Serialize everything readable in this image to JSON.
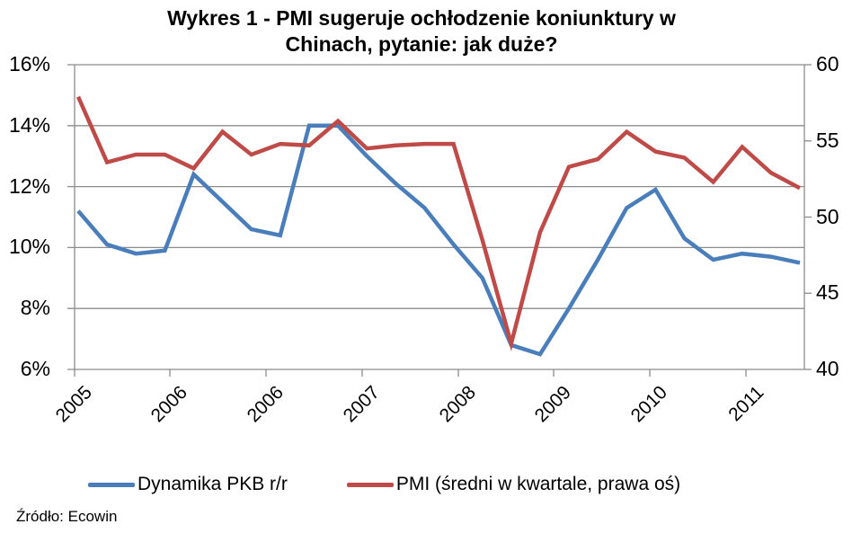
{
  "chart_data": {
    "type": "line",
    "title": "Wykres 1 - PMI sugeruje ochłodzenie koniunktury w Chinach, pytanie: jak duże?",
    "title_lines": [
      "Wykres 1 - PMI sugeruje ochłodzenie koniunktury w",
      "Chinach, pytanie: jak duże?"
    ],
    "xlabel": "",
    "ylabel": "",
    "y2label": "",
    "x_tick_labels": [
      "2005",
      "2006",
      "2006",
      "2007",
      "2008",
      "2009",
      "2010",
      "2011"
    ],
    "y_tick_labels": [
      "16%",
      "14%",
      "12%",
      "10%",
      "8%",
      "6%"
    ],
    "y2_tick_labels": [
      "60",
      "55",
      "50",
      "45",
      "40"
    ],
    "ylim": [
      6,
      16
    ],
    "y2lim": [
      40,
      60
    ],
    "grid": true,
    "legend_position": "bottom",
    "x": [
      "Q1-2005",
      "Q2-2005",
      "Q3-2005",
      "Q4-2005",
      "Q1-2006",
      "Q2-2006",
      "Q3-2006",
      "Q4-2006",
      "Q1-2007",
      "Q2-2007",
      "Q3-2007",
      "Q4-2007",
      "Q1-2008",
      "Q2-2008",
      "Q3-2008",
      "Q4-2008",
      "Q1-2009",
      "Q2-2009",
      "Q3-2009",
      "Q4-2009",
      "Q1-2010",
      "Q2-2010",
      "Q3-2010",
      "Q4-2010",
      "Q1-2011",
      "Q2-2011"
    ],
    "series": [
      {
        "name": "Dynamika PKB r/r",
        "axis": "left",
        "color": "#4a7ebb",
        "values": [
          11.2,
          10.1,
          9.8,
          9.9,
          12.4,
          11.5,
          10.6,
          10.4,
          14.0,
          14.0,
          13.0,
          12.1,
          11.3,
          10.1,
          9.0,
          6.8,
          6.5,
          8.0,
          9.6,
          11.3,
          11.9,
          10.3,
          9.6,
          9.8,
          9.7,
          9.5
        ]
      },
      {
        "name": "PMI (średni w kwartale, prawa oś)",
        "axis": "right",
        "color": "#be4b48",
        "values": [
          57.9,
          53.6,
          54.1,
          54.1,
          53.2,
          55.6,
          54.1,
          54.8,
          54.7,
          56.3,
          54.5,
          54.7,
          54.8,
          54.8,
          48.5,
          41.7,
          49.0,
          53.3,
          53.8,
          55.6,
          54.3,
          53.9,
          52.3,
          54.6,
          52.9,
          51.9
        ]
      }
    ]
  },
  "legend": {
    "items": [
      {
        "label": "Dynamika PKB r/r",
        "color": "#4a7ebb"
      },
      {
        "label": "PMI (średni w kwartale, prawa oś)",
        "color": "#be4b48"
      }
    ]
  },
  "source": "Źródło: Ecowin"
}
